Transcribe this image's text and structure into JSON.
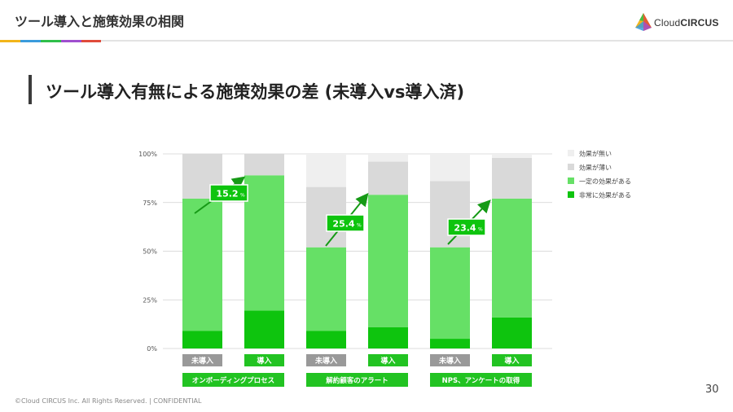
{
  "header": {
    "title": "ツール導入と施策効果の相関"
  },
  "logo": {
    "brand": "CloudCIRCUS",
    "brand_light": "Cloud",
    "brand_bold": "CIRCUS"
  },
  "heading": {
    "text": "ツール導入有無による施策効果の差 (未導入vs導入済)"
  },
  "footer": {
    "copyright": "©Cloud CIRCUS Inc. All Rights Reserved. | CONFIDENTIAL",
    "page_number": "30"
  },
  "colors": {
    "none": "#efefef",
    "weak": "#d9d9d9",
    "some": "#66e066",
    "very": "#0ec40e",
    "label_gray": "#999999",
    "label_green": "#22c322",
    "arrow": "#169a16",
    "accents": [
      "#f2b51a",
      "#3a9bdc",
      "#2fbf4a",
      "#9f4fcf",
      "#e04b3b"
    ]
  },
  "chart_data": {
    "type": "bar",
    "stacked": true,
    "y_ticks": [
      "0%",
      "25%",
      "50%",
      "75%",
      "100%"
    ],
    "ylim": [
      0,
      100
    ],
    "legend_position": "right",
    "series": [
      {
        "name": "非常に効果がある",
        "key": "very",
        "values": [
          9,
          19.5,
          9,
          11,
          5,
          16
        ]
      },
      {
        "name": "一定の効果がある",
        "key": "some",
        "values": [
          68,
          69.5,
          43,
          68,
          47,
          61
        ]
      },
      {
        "name": "効果が薄い",
        "key": "weak",
        "values": [
          23,
          11,
          31,
          17,
          34,
          21
        ]
      },
      {
        "name": "効果が無い",
        "key": "none",
        "values": [
          0,
          0,
          17,
          4,
          14,
          2
        ]
      }
    ],
    "bar_labels": [
      "未導入",
      "導入",
      "未導入",
      "導入",
      "未導入",
      "導入"
    ],
    "groups": [
      "オンボーディングプロセス",
      "解約顧客のアラート",
      "NPS、アンケートの取得"
    ],
    "differences": [
      "15.2",
      "25.4",
      "23.4"
    ],
    "difference_unit": "%"
  }
}
